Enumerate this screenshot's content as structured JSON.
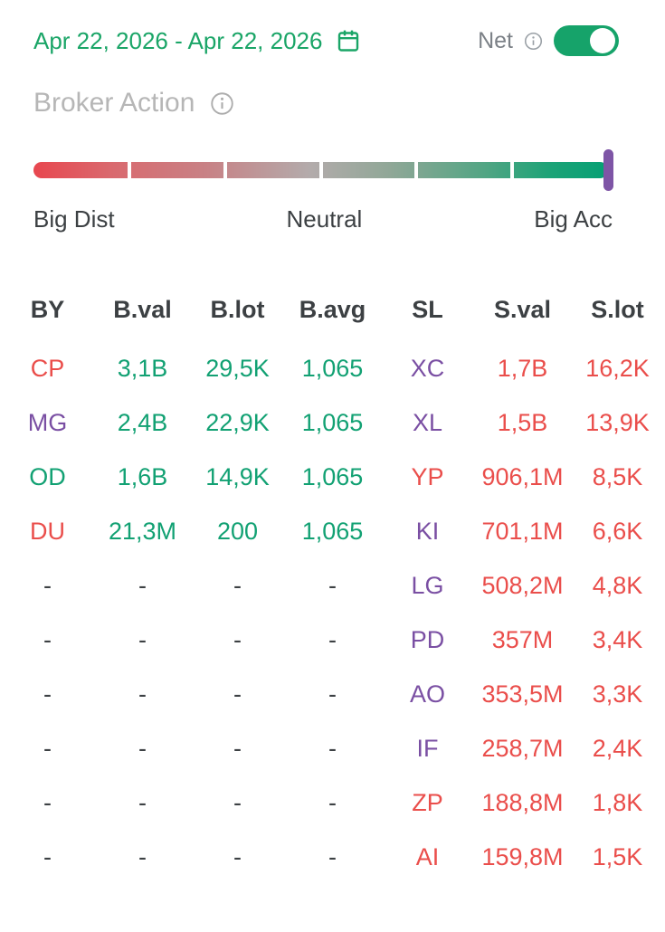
{
  "colors": {
    "accent_green": "#1aa567",
    "table_green": "#12a173",
    "table_red": "#ea4e4b",
    "table_purple": "#7a4fa3",
    "marker_purple": "#7e55a6",
    "gradient_start_red": "#e8474f",
    "gradient_mid_gray": "#b3abab",
    "gradient_end_green": "#05a074",
    "toggle_green": "#16a36a",
    "title_gray": "#b6b6b6"
  },
  "header": {
    "date_range": "Apr 22, 2026 - Apr 22, 2026",
    "calendar_icon": "calendar-icon",
    "net_label": "Net",
    "net_info_icon": "info-icon",
    "net_toggle_state": "on"
  },
  "section": {
    "title": "Broker Action",
    "info_icon": "info-icon"
  },
  "gauge": {
    "left_label": "Big Dist",
    "center_label": "Neutral",
    "right_label": "Big Acc",
    "segments": 6,
    "marker_position": "far-right"
  },
  "table": {
    "columns": [
      "BY",
      "B.val",
      "B.lot",
      "B.avg",
      "SL",
      "S.val",
      "S.lot"
    ],
    "rows": [
      {
        "cells": [
          {
            "text": "CP",
            "color": "red"
          },
          {
            "text": "3,1B",
            "color": "green"
          },
          {
            "text": "29,5K",
            "color": "green"
          },
          {
            "text": "1,065",
            "color": "green"
          },
          {
            "text": "XC",
            "color": "purple"
          },
          {
            "text": "1,7B",
            "color": "red"
          },
          {
            "text": "16,2K",
            "color": "red"
          }
        ]
      },
      {
        "cells": [
          {
            "text": "MG",
            "color": "purple"
          },
          {
            "text": "2,4B",
            "color": "green"
          },
          {
            "text": "22,9K",
            "color": "green"
          },
          {
            "text": "1,065",
            "color": "green"
          },
          {
            "text": "XL",
            "color": "purple"
          },
          {
            "text": "1,5B",
            "color": "red"
          },
          {
            "text": "13,9K",
            "color": "red"
          }
        ]
      },
      {
        "cells": [
          {
            "text": "OD",
            "color": "green"
          },
          {
            "text": "1,6B",
            "color": "green"
          },
          {
            "text": "14,9K",
            "color": "green"
          },
          {
            "text": "1,065",
            "color": "green"
          },
          {
            "text": "YP",
            "color": "red"
          },
          {
            "text": "906,1M",
            "color": "red"
          },
          {
            "text": "8,5K",
            "color": "red"
          }
        ]
      },
      {
        "cells": [
          {
            "text": "DU",
            "color": "red"
          },
          {
            "text": "21,3M",
            "color": "green"
          },
          {
            "text": "200",
            "color": "green"
          },
          {
            "text": "1,065",
            "color": "green"
          },
          {
            "text": "KI",
            "color": "purple"
          },
          {
            "text": "701,1M",
            "color": "red"
          },
          {
            "text": "6,6K",
            "color": "red"
          }
        ]
      },
      {
        "cells": [
          {
            "text": "-",
            "color": "dark"
          },
          {
            "text": "-",
            "color": "dark"
          },
          {
            "text": "-",
            "color": "dark"
          },
          {
            "text": "-",
            "color": "dark"
          },
          {
            "text": "LG",
            "color": "purple"
          },
          {
            "text": "508,2M",
            "color": "red"
          },
          {
            "text": "4,8K",
            "color": "red"
          }
        ]
      },
      {
        "cells": [
          {
            "text": "-",
            "color": "dark"
          },
          {
            "text": "-",
            "color": "dark"
          },
          {
            "text": "-",
            "color": "dark"
          },
          {
            "text": "-",
            "color": "dark"
          },
          {
            "text": "PD",
            "color": "purple"
          },
          {
            "text": "357M",
            "color": "red"
          },
          {
            "text": "3,4K",
            "color": "red"
          }
        ]
      },
      {
        "cells": [
          {
            "text": "-",
            "color": "dark"
          },
          {
            "text": "-",
            "color": "dark"
          },
          {
            "text": "-",
            "color": "dark"
          },
          {
            "text": "-",
            "color": "dark"
          },
          {
            "text": "AO",
            "color": "purple"
          },
          {
            "text": "353,5M",
            "color": "red"
          },
          {
            "text": "3,3K",
            "color": "red"
          }
        ]
      },
      {
        "cells": [
          {
            "text": "-",
            "color": "dark"
          },
          {
            "text": "-",
            "color": "dark"
          },
          {
            "text": "-",
            "color": "dark"
          },
          {
            "text": "-",
            "color": "dark"
          },
          {
            "text": "IF",
            "color": "purple"
          },
          {
            "text": "258,7M",
            "color": "red"
          },
          {
            "text": "2,4K",
            "color": "red"
          }
        ]
      },
      {
        "cells": [
          {
            "text": "-",
            "color": "dark"
          },
          {
            "text": "-",
            "color": "dark"
          },
          {
            "text": "-",
            "color": "dark"
          },
          {
            "text": "-",
            "color": "dark"
          },
          {
            "text": "ZP",
            "color": "red"
          },
          {
            "text": "188,8M",
            "color": "red"
          },
          {
            "text": "1,8K",
            "color": "red"
          }
        ]
      },
      {
        "cells": [
          {
            "text": "-",
            "color": "dark"
          },
          {
            "text": "-",
            "color": "dark"
          },
          {
            "text": "-",
            "color": "dark"
          },
          {
            "text": "-",
            "color": "dark"
          },
          {
            "text": "AI",
            "color": "red"
          },
          {
            "text": "159,8M",
            "color": "red"
          },
          {
            "text": "1,5K",
            "color": "red"
          }
        ]
      }
    ]
  }
}
